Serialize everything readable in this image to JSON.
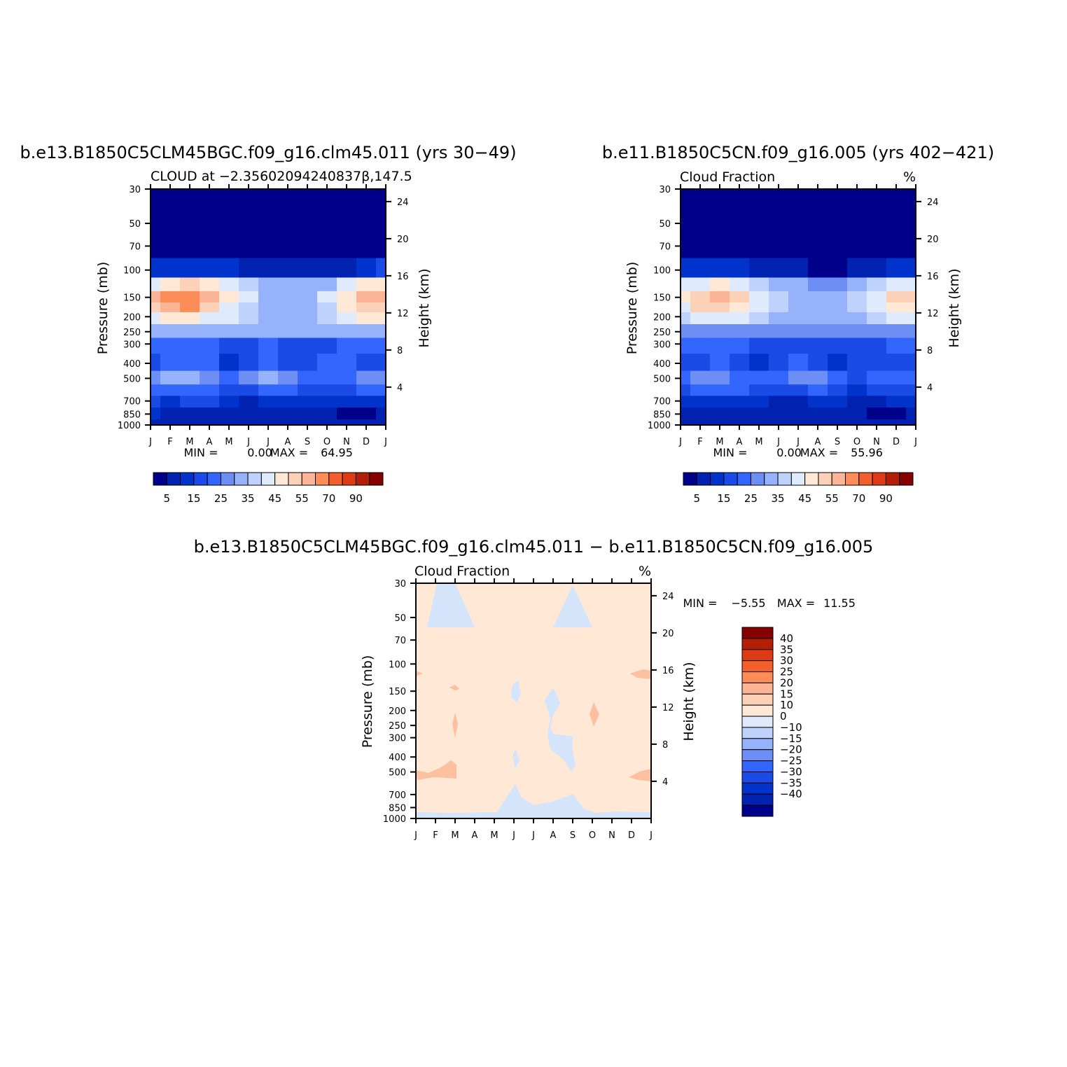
{
  "chart_data": [
    {
      "type": "heatmap",
      "title": "b.e13.B1850C5CLM45BGC.f09_g16.clm45.011 (yrs 30−49)",
      "subtitle_left": "CLOUD at −2.35602094240837β,147.5",
      "subtitle_right": "",
      "ylabel": "Pressure (mb)",
      "ylabel_right": "Height (km)",
      "x_ticks": [
        "J",
        "F",
        "M",
        "A",
        "M",
        "J",
        "J",
        "A",
        "S",
        "O",
        "N",
        "D",
        "J"
      ],
      "y_ticks": [
        "30",
        "50",
        "70",
        "100",
        "150",
        "200",
        "250",
        "300",
        "400",
        "500",
        "700",
        "850",
        "1000"
      ],
      "y_ticks_right": [
        "24",
        "20",
        "16",
        "12",
        "8",
        "4"
      ],
      "min_label": "MIN =",
      "min_value": "0.00",
      "max_label": "MAX =",
      "max_value": "64.95",
      "colorbar_labels": [
        "5",
        "15",
        "25",
        "35",
        "45",
        "55",
        "70",
        "90"
      ],
      "colorbar_orientation": "horizontal",
      "field_months": [
        "J",
        "F",
        "M",
        "A",
        "M",
        "J",
        "J",
        "A",
        "S",
        "O",
        "N",
        "D",
        "J"
      ],
      "field_levels_mb": [
        30,
        50,
        70,
        100,
        125,
        150,
        175,
        200,
        250,
        300,
        400,
        500,
        600,
        700,
        850,
        1000
      ],
      "values": [
        [
          2,
          2,
          2,
          2,
          2,
          2,
          2,
          2,
          2,
          2,
          2,
          2,
          2
        ],
        [
          2,
          2,
          2,
          2,
          2,
          2,
          2,
          2,
          2,
          2,
          2,
          2,
          2
        ],
        [
          3,
          3,
          3,
          3,
          2,
          2,
          2,
          2,
          2,
          2,
          2,
          3,
          4
        ],
        [
          14,
          13,
          13,
          12,
          10,
          8,
          6,
          5,
          5,
          6,
          8,
          12,
          15
        ],
        [
          44,
          48,
          50,
          45,
          40,
          36,
          33,
          30,
          30,
          34,
          40,
          46,
          48
        ],
        [
          55,
          62,
          64,
          58,
          48,
          40,
          34,
          32,
          34,
          40,
          48,
          56,
          58
        ],
        [
          50,
          58,
          60,
          52,
          44,
          38,
          33,
          32,
          34,
          38,
          46,
          52,
          54
        ],
        [
          40,
          46,
          48,
          44,
          40,
          36,
          33,
          32,
          33,
          35,
          42,
          46,
          48
        ],
        [
          30,
          32,
          32,
          33,
          30,
          30,
          30,
          30,
          30,
          30,
          32,
          32,
          32
        ],
        [
          22,
          23,
          23,
          22,
          18,
          19,
          20,
          19,
          18,
          19,
          20,
          22,
          22
        ],
        [
          18,
          22,
          24,
          20,
          14,
          16,
          22,
          16,
          16,
          22,
          20,
          19,
          18
        ],
        [
          25,
          30,
          30,
          28,
          24,
          26,
          31,
          28,
          22,
          20,
          22,
          26,
          25
        ],
        [
          20,
          22,
          24,
          22,
          18,
          16,
          20,
          22,
          18,
          15,
          17,
          20,
          21
        ],
        [
          16,
          14,
          15,
          15,
          12,
          8,
          10,
          12,
          14,
          10,
          10,
          12,
          14
        ],
        [
          10,
          9,
          9,
          9,
          9,
          7,
          7,
          8,
          9,
          8,
          4,
          4,
          6
        ],
        [
          8,
          8,
          8,
          8,
          8,
          8,
          8,
          8,
          8,
          8,
          8,
          8,
          8
        ]
      ]
    },
    {
      "type": "heatmap",
      "title": "b.e11.B1850C5CN.f09_g16.005 (yrs 402−421)",
      "subtitle_left": "Cloud Fraction",
      "subtitle_right": "%",
      "ylabel": "Pressure (mb)",
      "ylabel_right": "Height (km)",
      "x_ticks": [
        "J",
        "F",
        "M",
        "A",
        "M",
        "J",
        "J",
        "A",
        "S",
        "O",
        "N",
        "D",
        "J"
      ],
      "y_ticks": [
        "30",
        "50",
        "70",
        "100",
        "150",
        "200",
        "250",
        "300",
        "400",
        "500",
        "700",
        "850",
        "1000"
      ],
      "y_ticks_right": [
        "24",
        "20",
        "16",
        "12",
        "8",
        "4"
      ],
      "min_label": "MIN =",
      "min_value": "0.00",
      "max_label": "MAX =",
      "max_value": "55.96",
      "colorbar_labels": [
        "5",
        "15",
        "25",
        "35",
        "45",
        "55",
        "70",
        "90"
      ],
      "colorbar_orientation": "horizontal",
      "field_months": [
        "J",
        "F",
        "M",
        "A",
        "M",
        "J",
        "J",
        "A",
        "S",
        "O",
        "N",
        "D",
        "J"
      ],
      "field_levels_mb": [
        30,
        50,
        70,
        100,
        125,
        150,
        175,
        200,
        250,
        300,
        400,
        500,
        600,
        700,
        850,
        1000
      ],
      "values": [
        [
          2,
          2,
          2,
          2,
          2,
          2,
          2,
          2,
          2,
          2,
          2,
          2,
          2
        ],
        [
          2,
          2,
          2,
          2,
          2,
          2,
          2,
          2,
          2,
          2,
          2,
          2,
          2
        ],
        [
          3,
          3,
          3,
          3,
          2,
          2,
          2,
          2,
          2,
          2,
          2,
          3,
          4
        ],
        [
          12,
          11,
          11,
          10,
          9,
          7,
          5,
          4,
          4,
          5,
          7,
          11,
          13
        ],
        [
          40,
          44,
          46,
          42,
          38,
          34,
          30,
          28,
          28,
          32,
          38,
          42,
          44
        ],
        [
          48,
          54,
          55,
          50,
          44,
          38,
          32,
          30,
          32,
          38,
          44,
          50,
          52
        ],
        [
          44,
          50,
          52,
          48,
          42,
          36,
          32,
          30,
          32,
          36,
          42,
          46,
          48
        ],
        [
          36,
          40,
          42,
          40,
          38,
          34,
          32,
          30,
          31,
          33,
          38,
          40,
          42
        ],
        [
          26,
          28,
          28,
          28,
          27,
          27,
          27,
          27,
          27,
          27,
          28,
          28,
          28
        ],
        [
          20,
          21,
          21,
          20,
          18,
          18,
          19,
          18,
          17,
          18,
          19,
          20,
          20
        ],
        [
          16,
          18,
          20,
          18,
          14,
          18,
          20,
          16,
          14,
          16,
          18,
          17,
          16
        ],
        [
          22,
          26,
          28,
          24,
          22,
          24,
          28,
          26,
          20,
          18,
          20,
          24,
          22
        ],
        [
          18,
          20,
          21,
          20,
          16,
          16,
          18,
          20,
          16,
          14,
          16,
          18,
          19
        ],
        [
          14,
          13,
          13,
          13,
          11,
          8,
          9,
          10,
          12,
          8,
          8,
          10,
          12
        ],
        [
          9,
          8,
          8,
          8,
          8,
          7,
          7,
          7,
          8,
          6,
          4,
          4,
          6
        ],
        [
          8,
          8,
          8,
          8,
          8,
          8,
          8,
          8,
          8,
          8,
          8,
          8,
          8
        ]
      ]
    },
    {
      "type": "heatmap",
      "title": "b.e13.B1850C5CLM45BGC.f09_g16.clm45.011 − b.e11.B1850C5CN.f09_g16.005",
      "subtitle_left": "Cloud Fraction",
      "subtitle_right": "%",
      "ylabel": "Pressure (mb)",
      "ylabel_right": "Height (km)",
      "x_ticks": [
        "J",
        "F",
        "M",
        "A",
        "M",
        "J",
        "J",
        "A",
        "S",
        "O",
        "N",
        "D",
        "J"
      ],
      "y_ticks": [
        "30",
        "50",
        "70",
        "100",
        "150",
        "200",
        "250",
        "300",
        "400",
        "500",
        "700",
        "850",
        "1000"
      ],
      "y_ticks_right": [
        "24",
        "20",
        "16",
        "12",
        "8",
        "4"
      ],
      "min_label": "MIN =",
      "min_value": "−5.55",
      "max_label": "MAX =",
      "max_value": "11.55",
      "colorbar_labels": [
        "40",
        "35",
        "30",
        "25",
        "20",
        "15",
        "10",
        "0",
        "−10",
        "−15",
        "−20",
        "−25",
        "−30",
        "−35",
        "−40"
      ],
      "colorbar_orientation": "vertical"
    }
  ],
  "colors": {
    "abs_scale": [
      "#00008b",
      "#0022b0",
      "#0033cc",
      "#1a4be6",
      "#3366ff",
      "#6c8ef5",
      "#96b2fa",
      "#bfd2fc",
      "#dfeafd",
      "#ffe8d6",
      "#fdd0b8",
      "#fcb497",
      "#fc8d59",
      "#f4602d",
      "#dd3a16",
      "#b31e07",
      "#870000"
    ],
    "diff_scale": [
      "#870000",
      "#b31e07",
      "#dd3a16",
      "#f4602d",
      "#fc8d59",
      "#fcb497",
      "#fdd0b8",
      "#ffe8d6",
      "#dfeafd",
      "#bfd2fc",
      "#96b2fa",
      "#6c8ef5",
      "#3366ff",
      "#1a4be6",
      "#0033cc",
      "#0022b0",
      "#00008b"
    ],
    "diff_background": "#ffe8d6",
    "diff_negative": "#d3e4fb",
    "diff_positive": "#fcc0a0"
  }
}
